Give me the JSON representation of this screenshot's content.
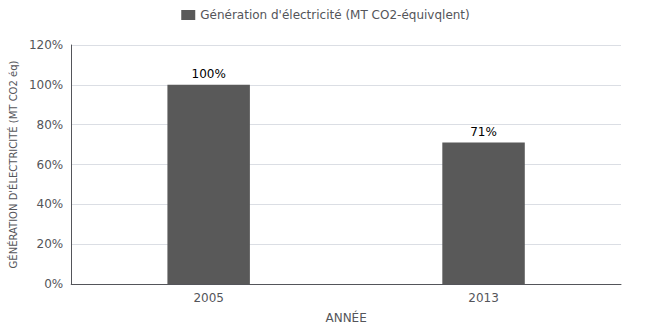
{
  "chart_data": {
    "type": "bar",
    "categories": [
      "2005",
      "2013"
    ],
    "series": [
      {
        "name": "Génération d'électricité (MT CO2-équivqlent)",
        "color": "#595959",
        "values": [
          100,
          71
        ],
        "value_labels": [
          "100%",
          "71%"
        ]
      }
    ],
    "xlabel": "ANNÉE",
    "ylabel": "GÉNÉRATION D'ÉLECTRICITÉ (MT CO2 éq)",
    "ylim": [
      0,
      120
    ],
    "yticks": [
      {
        "value": 0,
        "label": "0%"
      },
      {
        "value": 20,
        "label": "20%"
      },
      {
        "value": 40,
        "label": "40%"
      },
      {
        "value": 60,
        "label": "60%"
      },
      {
        "value": 80,
        "label": "80%"
      },
      {
        "value": 100,
        "label": "100%"
      },
      {
        "value": 120,
        "label": "120%"
      }
    ],
    "grid": true,
    "legend": "top",
    "data_labels": true
  }
}
